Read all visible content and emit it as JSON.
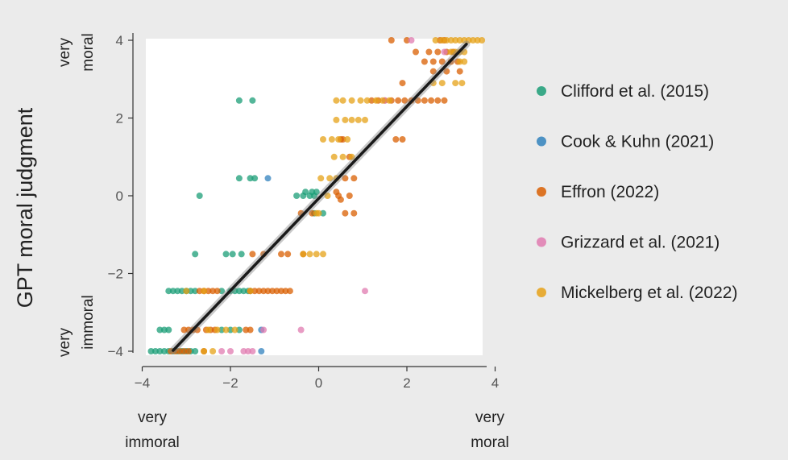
{
  "chart_data": {
    "type": "scatter",
    "title": "",
    "xlabel": "",
    "ylabel": "GPT moral judgment",
    "xlim": [
      -4,
      4
    ],
    "ylim": [
      -4,
      4
    ],
    "x_ticks": [
      "−4",
      "−2",
      "0",
      "2",
      "4"
    ],
    "y_ticks": [
      "−4",
      "−2",
      "0",
      "2",
      "4"
    ],
    "x_end_labels": {
      "low": [
        "very",
        "immoral"
      ],
      "high": [
        "very",
        "moral"
      ]
    },
    "y_end_labels": {
      "low": [
        "very",
        "immoral"
      ],
      "high": [
        "very",
        "moral"
      ]
    },
    "legend_position": "right",
    "grid": false,
    "fit_line": {
      "x": [
        -3.3,
        3.35
      ],
      "y": [
        -3.98,
        3.9
      ],
      "color": "#1a1a1a"
    },
    "series": [
      {
        "name": "Clifford et al. (2015)",
        "color": "#1b9e77",
        "points": [
          [
            -1.8,
            2.45
          ],
          [
            -1.5,
            2.45
          ],
          [
            -1.8,
            0.45
          ],
          [
            -1.55,
            0.45
          ],
          [
            -1.45,
            0.45
          ],
          [
            -2.7,
            0.0
          ],
          [
            -0.5,
            0.0
          ],
          [
            -0.35,
            0.0
          ],
          [
            -0.2,
            0.0
          ],
          [
            -0.3,
            0.1
          ],
          [
            -0.15,
            0.1
          ],
          [
            -0.05,
            0.1
          ],
          [
            -0.1,
            0.0
          ],
          [
            -0.1,
            -0.45
          ],
          [
            0.1,
            -0.45
          ],
          [
            -2.8,
            -1.5
          ],
          [
            -2.1,
            -1.5
          ],
          [
            -1.95,
            -1.5
          ],
          [
            -1.75,
            -1.5
          ],
          [
            -3.4,
            -2.45
          ],
          [
            -3.3,
            -2.45
          ],
          [
            -3.2,
            -2.45
          ],
          [
            -3.1,
            -2.45
          ],
          [
            -3.0,
            -2.45
          ],
          [
            -2.9,
            -2.45
          ],
          [
            -2.8,
            -2.45
          ],
          [
            -2.2,
            -2.45
          ],
          [
            -2.0,
            -2.45
          ],
          [
            -1.9,
            -2.45
          ],
          [
            -1.8,
            -2.45
          ],
          [
            -1.7,
            -2.45
          ],
          [
            -1.6,
            -2.45
          ],
          [
            -3.6,
            -3.45
          ],
          [
            -3.5,
            -3.45
          ],
          [
            -3.4,
            -3.45
          ],
          [
            -2.2,
            -3.45
          ],
          [
            -2.0,
            -3.45
          ],
          [
            -1.8,
            -3.45
          ],
          [
            -3.8,
            -4.0
          ],
          [
            -3.7,
            -4.0
          ],
          [
            -3.6,
            -4.0
          ],
          [
            -3.5,
            -4.0
          ],
          [
            -3.4,
            -4.0
          ],
          [
            -3.3,
            -4.0
          ],
          [
            -3.2,
            -4.0
          ],
          [
            -3.1,
            -4.0
          ],
          [
            -3.0,
            -4.0
          ],
          [
            -2.9,
            -4.0
          ],
          [
            -2.8,
            -4.0
          ]
        ]
      },
      {
        "name": "Cook & Kuhn (2021)",
        "color": "#3182bd",
        "points": [
          [
            -1.15,
            0.45
          ],
          [
            -1.3,
            -3.45
          ],
          [
            -1.3,
            -4.0
          ],
          [
            -1.55,
            -2.45
          ]
        ]
      },
      {
        "name": "Effron (2022)",
        "color": "#d95f02",
        "points": [
          [
            1.65,
            4.0
          ],
          [
            2.0,
            4.0
          ],
          [
            2.75,
            4.0
          ],
          [
            2.85,
            4.0
          ],
          [
            2.2,
            3.7
          ],
          [
            2.5,
            3.7
          ],
          [
            2.7,
            3.7
          ],
          [
            2.9,
            3.7
          ],
          [
            3.05,
            3.7
          ],
          [
            2.4,
            3.45
          ],
          [
            2.6,
            3.45
          ],
          [
            2.8,
            3.45
          ],
          [
            3.0,
            3.45
          ],
          [
            3.15,
            3.45
          ],
          [
            2.6,
            3.2
          ],
          [
            2.9,
            3.2
          ],
          [
            3.2,
            3.2
          ],
          [
            1.9,
            2.9
          ],
          [
            1.2,
            2.45
          ],
          [
            1.35,
            2.45
          ],
          [
            1.5,
            2.45
          ],
          [
            1.65,
            2.45
          ],
          [
            1.8,
            2.45
          ],
          [
            1.95,
            2.45
          ],
          [
            2.1,
            2.45
          ],
          [
            2.25,
            2.45
          ],
          [
            2.4,
            2.45
          ],
          [
            2.55,
            2.45
          ],
          [
            2.7,
            2.45
          ],
          [
            2.85,
            2.45
          ],
          [
            0.5,
            1.45
          ],
          [
            0.55,
            1.45
          ],
          [
            1.75,
            1.45
          ],
          [
            1.9,
            1.45
          ],
          [
            0.7,
            1.0
          ],
          [
            0.6,
            0.45
          ],
          [
            0.8,
            0.45
          ],
          [
            0.4,
            0.1
          ],
          [
            0.45,
            0.0
          ],
          [
            0.7,
            0.0
          ],
          [
            0.5,
            -0.1
          ],
          [
            -0.4,
            -0.45
          ],
          [
            -0.15,
            -0.45
          ],
          [
            0.6,
            -0.45
          ],
          [
            0.8,
            -0.45
          ],
          [
            -1.5,
            -1.5
          ],
          [
            -1.25,
            -1.5
          ],
          [
            -0.85,
            -1.5
          ],
          [
            -0.7,
            -1.5
          ],
          [
            -0.35,
            -1.5
          ],
          [
            -2.7,
            -2.45
          ],
          [
            -2.6,
            -2.45
          ],
          [
            -2.5,
            -2.45
          ],
          [
            -2.4,
            -2.45
          ],
          [
            -2.3,
            -2.45
          ],
          [
            -1.55,
            -2.45
          ],
          [
            -1.45,
            -2.45
          ],
          [
            -1.35,
            -2.45
          ],
          [
            -1.25,
            -2.45
          ],
          [
            -1.15,
            -2.45
          ],
          [
            -1.05,
            -2.45
          ],
          [
            -0.95,
            -2.45
          ],
          [
            -0.85,
            -2.45
          ],
          [
            -0.75,
            -2.45
          ],
          [
            -0.65,
            -2.45
          ],
          [
            -3.05,
            -3.45
          ],
          [
            -2.95,
            -3.45
          ],
          [
            -2.85,
            -3.45
          ],
          [
            -2.75,
            -3.45
          ],
          [
            -2.55,
            -3.45
          ],
          [
            -2.45,
            -3.45
          ],
          [
            -2.35,
            -3.45
          ],
          [
            -1.65,
            -3.45
          ],
          [
            -1.55,
            -3.45
          ],
          [
            -3.35,
            -4.0
          ],
          [
            -3.25,
            -4.0
          ],
          [
            -3.15,
            -4.0
          ],
          [
            -3.05,
            -4.0
          ],
          [
            -2.95,
            -4.0
          ],
          [
            -2.6,
            -4.0
          ]
        ]
      },
      {
        "name": "Grizzard et al. (2021)",
        "color": "#e07bb0",
        "points": [
          [
            2.1,
            4.0
          ],
          [
            2.85,
            3.7
          ],
          [
            1.5,
            2.45
          ],
          [
            1.05,
            -2.45
          ],
          [
            -0.4,
            -3.45
          ],
          [
            -1.25,
            -3.45
          ],
          [
            -2.2,
            -4.0
          ],
          [
            -2.0,
            -4.0
          ],
          [
            -1.7,
            -4.0
          ],
          [
            -1.6,
            -4.0
          ],
          [
            -1.5,
            -4.0
          ]
        ]
      },
      {
        "name": "Mickelberg et al. (2022)",
        "color": "#e6a117",
        "points": [
          [
            2.65,
            4.0
          ],
          [
            2.8,
            4.0
          ],
          [
            2.9,
            4.0
          ],
          [
            3.0,
            4.0
          ],
          [
            3.1,
            4.0
          ],
          [
            3.2,
            4.0
          ],
          [
            3.3,
            4.0
          ],
          [
            3.4,
            4.0
          ],
          [
            3.5,
            4.0
          ],
          [
            3.6,
            4.0
          ],
          [
            3.7,
            4.0
          ],
          [
            3.0,
            3.7
          ],
          [
            3.1,
            3.7
          ],
          [
            3.2,
            3.7
          ],
          [
            3.3,
            3.7
          ],
          [
            3.2,
            3.45
          ],
          [
            3.3,
            3.45
          ],
          [
            2.6,
            2.9
          ],
          [
            2.8,
            2.9
          ],
          [
            3.1,
            2.9
          ],
          [
            3.25,
            2.9
          ],
          [
            0.4,
            2.45
          ],
          [
            0.55,
            2.45
          ],
          [
            0.75,
            2.45
          ],
          [
            0.95,
            2.45
          ],
          [
            1.1,
            2.45
          ],
          [
            1.3,
            2.45
          ],
          [
            1.45,
            2.45
          ],
          [
            1.6,
            2.45
          ],
          [
            0.4,
            1.95
          ],
          [
            0.6,
            1.95
          ],
          [
            0.75,
            1.95
          ],
          [
            0.9,
            1.95
          ],
          [
            1.05,
            1.95
          ],
          [
            0.1,
            1.45
          ],
          [
            0.3,
            1.45
          ],
          [
            0.45,
            1.45
          ],
          [
            0.65,
            1.45
          ],
          [
            0.35,
            1.0
          ],
          [
            0.55,
            1.0
          ],
          [
            0.75,
            1.0
          ],
          [
            0.05,
            0.45
          ],
          [
            0.25,
            0.45
          ],
          [
            0.4,
            0.45
          ],
          [
            0.2,
            0.0
          ],
          [
            0.0,
            -0.45
          ],
          [
            -0.05,
            -0.45
          ],
          [
            -0.35,
            -1.5
          ],
          [
            -0.2,
            -1.5
          ],
          [
            -0.05,
            -1.5
          ],
          [
            0.1,
            -1.5
          ],
          [
            -3.0,
            -2.45
          ],
          [
            -2.6,
            -2.45
          ],
          [
            -1.55,
            -2.45
          ],
          [
            -2.5,
            -3.45
          ],
          [
            -2.3,
            -3.45
          ],
          [
            -2.1,
            -3.45
          ],
          [
            -1.9,
            -3.45
          ],
          [
            -2.6,
            -4.0
          ],
          [
            -2.4,
            -4.0
          ]
        ]
      }
    ]
  }
}
